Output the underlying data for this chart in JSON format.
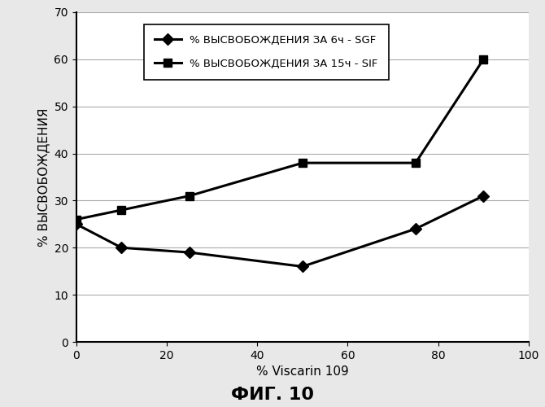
{
  "sgf_x": [
    0,
    10,
    25,
    50,
    75,
    90
  ],
  "sgf_y": [
    25,
    20,
    19,
    16,
    24,
    31
  ],
  "sif_x": [
    0,
    10,
    25,
    50,
    75,
    90
  ],
  "sif_y": [
    26,
    28,
    31,
    38,
    38,
    60
  ],
  "xlabel": "% Viscarin 109",
  "ylabel": "% ВЫСВОБОЖДЕНИЯ",
  "xlim": [
    0,
    100
  ],
  "ylim": [
    0,
    70
  ],
  "xticks": [
    0,
    20,
    40,
    60,
    80,
    100
  ],
  "yticks": [
    0,
    10,
    20,
    30,
    40,
    50,
    60,
    70
  ],
  "legend_label_sgf": "% ВЫСВОБОЖДЕНИЯ ЗА 6ч - SGF",
  "legend_label_sif": "% ВЫСВОБОЖДЕНИЯ ЗА 15ч - SIF",
  "figure_caption": "ФИГ. 10",
  "line_color": "#000000",
  "bg_color": "#e8e8e8",
  "plot_bg": "#ffffff",
  "grid_color": "#aaaaaa"
}
